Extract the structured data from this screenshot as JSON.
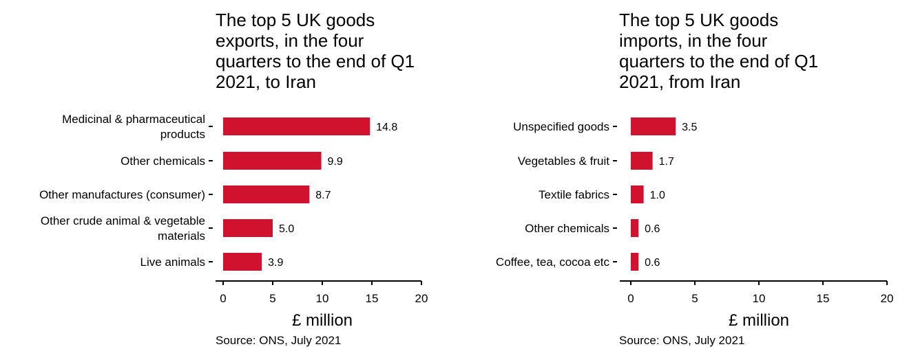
{
  "colors": {
    "bar": "#d0122f",
    "axis": "#000000",
    "text": "#000000"
  },
  "chart_data": [
    {
      "type": "bar",
      "orientation": "horizontal",
      "title": "The top 5 UK goods exports, in the four quarters to the end of Q1 2021, to Iran",
      "title_lines": [
        "The top 5 UK goods",
        "exports, in the four",
        "quarters to the end of Q1",
        "2021, to Iran"
      ],
      "categories": [
        "Medicinal & pharmaceutical products",
        "Other chemicals",
        "Other manufactures (consumer)",
        "Other crude animal & vegetable materials",
        "Live animals"
      ],
      "category_lines": [
        [
          "Medicinal & pharmaceutical",
          "products"
        ],
        [
          "Other chemicals"
        ],
        [
          "Other manufactures (consumer)"
        ],
        [
          "Other crude animal & vegetable",
          "materials"
        ],
        [
          "Live animals"
        ]
      ],
      "values": [
        14.8,
        9.9,
        8.7,
        5.0,
        3.9
      ],
      "data_labels": [
        "14.8",
        "9.9",
        "8.7",
        "5.0",
        "3.9"
      ],
      "xlabel": "£ million",
      "ylabel": "",
      "xlim": [
        0,
        20
      ],
      "xticks": [
        "0",
        "5",
        "10",
        "15",
        "20"
      ],
      "grid": false,
      "legend": "none",
      "source": "Source: ONS, July 2021"
    },
    {
      "type": "bar",
      "orientation": "horizontal",
      "title": "The top 5 UK goods imports, in the four quarters to the end of Q1 2021, from Iran",
      "title_lines": [
        "The top 5 UK goods",
        "imports, in the four",
        "quarters to the end of Q1",
        "2021, from Iran"
      ],
      "categories": [
        "Unspecified goods",
        "Vegetables & fruit",
        "Textile fabrics",
        "Other chemicals",
        "Coffee, tea, cocoa etc"
      ],
      "category_lines": [
        [
          "Unspecified goods"
        ],
        [
          "Vegetables & fruit"
        ],
        [
          "Textile fabrics"
        ],
        [
          "Other chemicals"
        ],
        [
          "Coffee, tea, cocoa etc"
        ]
      ],
      "values": [
        3.5,
        1.7,
        1.0,
        0.6,
        0.6
      ],
      "data_labels": [
        "3.5",
        "1.7",
        "1.0",
        "0.6",
        "0.6"
      ],
      "xlabel": "£ million",
      "ylabel": "",
      "xlim": [
        0,
        20
      ],
      "xticks": [
        "0",
        "5",
        "10",
        "15",
        "20"
      ],
      "grid": false,
      "legend": "none",
      "source": "Source: ONS, July 2021"
    }
  ]
}
